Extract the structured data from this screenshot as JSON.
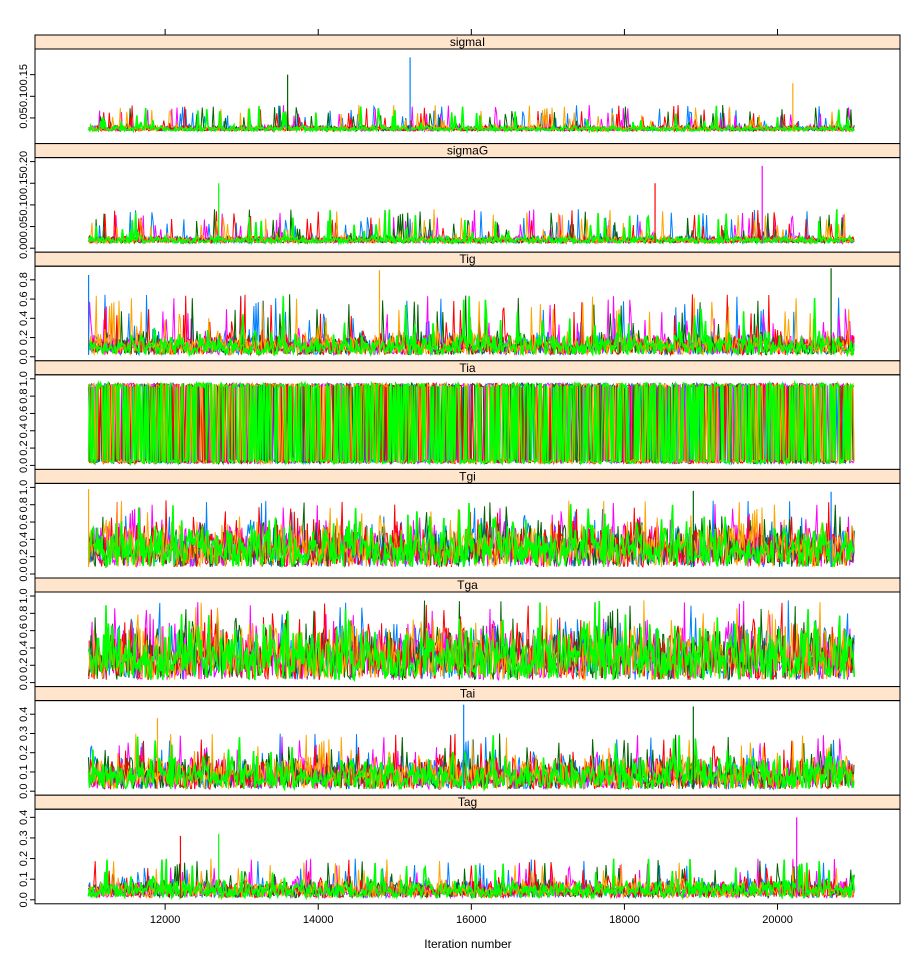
{
  "chart_data": {
    "type": "line",
    "description_style": "trellis trace plot",
    "xlabel": "Iteration number",
    "xlim": [
      10300,
      21600
    ],
    "x_ticks": [
      12000,
      14000,
      16000,
      18000,
      20000
    ],
    "x_tick_labels": [
      "12000",
      "14000",
      "16000",
      "18000",
      "20000"
    ],
    "x_range_data": [
      11000,
      21000
    ],
    "series_colors": [
      "#0080ff",
      "#ff00ff",
      "#006400",
      "#ff0000",
      "#ffa500",
      "#00ff00"
    ],
    "strip_color": "#ffe5cc",
    "panels": [
      {
        "name": "sigmaI",
        "ylim": [
          0,
          0.2
        ],
        "y_ticks": [
          0.05,
          0.1,
          0.15
        ],
        "y_tick_labels": [
          "0.05",
          "0.10",
          "0.15"
        ],
        "base": 0.02,
        "bulk": 0.03,
        "spike_top": 0.08,
        "peaks": [
          {
            "x": 15200,
            "y": 0.19
          },
          {
            "x": 13600,
            "y": 0.15
          },
          {
            "x": 20200,
            "y": 0.13
          }
        ]
      },
      {
        "name": "sigmaG",
        "ylim": [
          0,
          0.2
        ],
        "y_ticks": [
          0.0,
          0.05,
          0.1,
          0.15,
          0.2
        ],
        "y_tick_labels": [
          "0.00",
          "0.05",
          "0.10",
          "0.15",
          "0.20"
        ],
        "base": 0.012,
        "bulk": 0.025,
        "spike_top": 0.09,
        "peaks": [
          {
            "x": 19800,
            "y": 0.19
          },
          {
            "x": 18400,
            "y": 0.15
          },
          {
            "x": 12700,
            "y": 0.15
          }
        ]
      },
      {
        "name": "Tig",
        "ylim": [
          0,
          0.9
        ],
        "y_ticks": [
          0.0,
          0.2,
          0.4,
          0.6,
          0.8
        ],
        "y_tick_labels": [
          "0.0",
          "0.2",
          "0.4",
          "0.6",
          "0.8"
        ],
        "base": 0.02,
        "bulk": 0.2,
        "spike_top": 0.65,
        "peaks": [
          {
            "x": 20700,
            "y": 0.92
          },
          {
            "x": 14800,
            "y": 0.9
          },
          {
            "x": 11000,
            "y": 0.85
          }
        ]
      },
      {
        "name": "Tia",
        "ylim": [
          0,
          1.0
        ],
        "y_ticks": [
          0.0,
          0.2,
          0.4,
          0.6,
          0.8,
          1.0
        ],
        "y_tick_labels": [
          "0.0",
          "0.2",
          "0.4",
          "0.6",
          "0.8",
          "1.0"
        ],
        "base": 0.02,
        "bulk": 0.95,
        "spike_top": 0.98,
        "peaks": []
      },
      {
        "name": "Tgi",
        "ylim": [
          0,
          1.0
        ],
        "y_ticks": [
          0.0,
          0.2,
          0.4,
          0.6,
          0.8,
          1.0
        ],
        "y_tick_labels": [
          "0.0",
          "0.2",
          "0.4",
          "0.6",
          "0.8",
          "1.0"
        ],
        "base": 0.08,
        "bulk": 0.5,
        "spike_top": 0.85,
        "peaks": [
          {
            "x": 11000,
            "y": 0.98
          },
          {
            "x": 20700,
            "y": 0.95
          },
          {
            "x": 18900,
            "y": 0.96
          }
        ]
      },
      {
        "name": "Tga",
        "ylim": [
          0,
          1.0
        ],
        "y_ticks": [
          0.0,
          0.2,
          0.4,
          0.6,
          0.8,
          1.0
        ],
        "y_tick_labels": [
          "0.0",
          "0.2",
          "0.4",
          "0.6",
          "0.8",
          "1.0"
        ],
        "base": 0.03,
        "bulk": 0.55,
        "spike_top": 0.95,
        "peaks": []
      },
      {
        "name": "Tai",
        "ylim": [
          0,
          0.45
        ],
        "y_ticks": [
          0.0,
          0.1,
          0.2,
          0.3,
          0.4
        ],
        "y_tick_labels": [
          "0.0",
          "0.1",
          "0.2",
          "0.3",
          "0.4"
        ],
        "base": 0.01,
        "bulk": 0.15,
        "spike_top": 0.3,
        "peaks": [
          {
            "x": 15900,
            "y": 0.45
          },
          {
            "x": 18900,
            "y": 0.44
          },
          {
            "x": 11900,
            "y": 0.38
          }
        ]
      },
      {
        "name": "Tag",
        "ylim": [
          0,
          0.42
        ],
        "y_ticks": [
          0.0,
          0.1,
          0.2,
          0.3,
          0.4
        ],
        "y_tick_labels": [
          "0.0",
          "0.1",
          "0.2",
          "0.3",
          "0.4"
        ],
        "base": 0.01,
        "bulk": 0.08,
        "spike_top": 0.2,
        "peaks": [
          {
            "x": 20250,
            "y": 0.4
          },
          {
            "x": 12200,
            "y": 0.31
          },
          {
            "x": 12700,
            "y": 0.32
          }
        ]
      }
    ]
  }
}
